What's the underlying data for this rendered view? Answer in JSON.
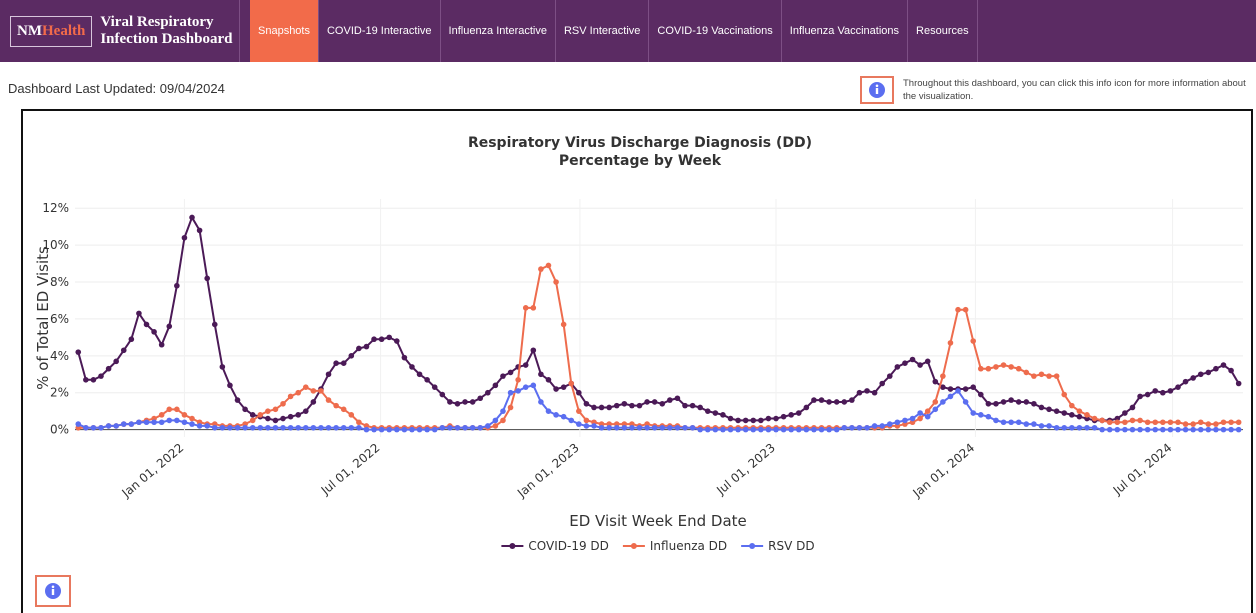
{
  "nav": {
    "brand_a": "NM",
    "brand_b": "Health",
    "title_lines": [
      "Viral Respiratory",
      "Infection Dashboard"
    ],
    "tabs": [
      "Snapshots",
      "COVID-19 Interactive",
      "Influenza Interactive",
      "RSV Interactive",
      "COVID-19 Vaccinations",
      "Influenza Vaccinations",
      "Resources"
    ]
  },
  "last_updated": "Dashboard Last Updated: 09/04/2024",
  "info_note": "Throughout this dashboard, you can click this info icon for more information about the visualization.",
  "chart_data": {
    "type": "line",
    "title": "Respiratory Virus Discharge Diagnosis (DD)",
    "subtitle": "Percentage by Week",
    "x_label": "ED Visit Week End Date",
    "y_label": "% of Total ED Visits",
    "xlim": [
      "2021-09-22",
      "2024-09-04"
    ],
    "xticks": [
      {
        "value": "2022-01-01",
        "label": "Jan 01, 2022"
      },
      {
        "value": "2022-07-01",
        "label": "Jul 01, 2022"
      },
      {
        "value": "2023-01-01",
        "label": "Jan 01, 2023"
      },
      {
        "value": "2023-07-01",
        "label": "Jul 01, 2023"
      },
      {
        "value": "2024-01-01",
        "label": "Jan 01, 2024"
      },
      {
        "value": "2024-07-01",
        "label": "Jul 01, 2024"
      }
    ],
    "ylim": [
      -0.4,
      12.5
    ],
    "yticks": [
      {
        "value": 0,
        "label": "0%"
      },
      {
        "value": 2,
        "label": "2%"
      },
      {
        "value": 4,
        "label": "4%"
      },
      {
        "value": 6,
        "label": "6%"
      },
      {
        "value": 8,
        "label": "8%"
      },
      {
        "value": 10,
        "label": "10%"
      },
      {
        "value": 12,
        "label": "12%"
      }
    ],
    "grid": true,
    "legend": "bottom",
    "x": [
      "2021-09-25",
      "2021-10-02",
      "2021-10-09",
      "2021-10-16",
      "2021-10-23",
      "2021-10-30",
      "2021-11-06",
      "2021-11-13",
      "2021-11-20",
      "2021-11-27",
      "2021-12-04",
      "2021-12-11",
      "2021-12-18",
      "2021-12-25",
      "2022-01-01",
      "2022-01-08",
      "2022-01-15",
      "2022-01-22",
      "2022-01-29",
      "2022-02-05",
      "2022-02-12",
      "2022-02-19",
      "2022-02-26",
      "2022-03-05",
      "2022-03-12",
      "2022-03-19",
      "2022-03-26",
      "2022-04-02",
      "2022-04-09",
      "2022-04-16",
      "2022-04-23",
      "2022-04-30",
      "2022-05-07",
      "2022-05-14",
      "2022-05-21",
      "2022-05-28",
      "2022-06-04",
      "2022-06-11",
      "2022-06-18",
      "2022-06-25",
      "2022-07-02",
      "2022-07-09",
      "2022-07-16",
      "2022-07-23",
      "2022-07-30",
      "2022-08-06",
      "2022-08-13",
      "2022-08-20",
      "2022-08-27",
      "2022-09-03",
      "2022-09-10",
      "2022-09-17",
      "2022-09-24",
      "2022-10-01",
      "2022-10-08",
      "2022-10-15",
      "2022-10-22",
      "2022-10-29",
      "2022-11-05",
      "2022-11-12",
      "2022-11-19",
      "2022-11-26",
      "2022-12-03",
      "2022-12-10",
      "2022-12-17",
      "2022-12-24",
      "2022-12-31",
      "2023-01-07",
      "2023-01-14",
      "2023-01-21",
      "2023-01-28",
      "2023-02-04",
      "2023-02-11",
      "2023-02-18",
      "2023-02-25",
      "2023-03-04",
      "2023-03-11",
      "2023-03-18",
      "2023-03-25",
      "2023-04-01",
      "2023-04-08",
      "2023-04-15",
      "2023-04-22",
      "2023-04-29",
      "2023-05-06",
      "2023-05-13",
      "2023-05-20",
      "2023-05-27",
      "2023-06-03",
      "2023-06-10",
      "2023-06-17",
      "2023-06-24",
      "2023-07-01",
      "2023-07-08",
      "2023-07-15",
      "2023-07-22",
      "2023-07-29",
      "2023-08-05",
      "2023-08-12",
      "2023-08-19",
      "2023-08-26",
      "2023-09-02",
      "2023-09-09",
      "2023-09-16",
      "2023-09-23",
      "2023-09-30",
      "2023-10-07",
      "2023-10-14",
      "2023-10-21",
      "2023-10-28",
      "2023-11-04",
      "2023-11-11",
      "2023-11-18",
      "2023-11-25",
      "2023-12-02",
      "2023-12-09",
      "2023-12-16",
      "2023-12-23",
      "2023-12-30",
      "2024-01-06",
      "2024-01-13",
      "2024-01-20",
      "2024-01-27",
      "2024-02-03",
      "2024-02-10",
      "2024-02-17",
      "2024-02-24",
      "2024-03-02",
      "2024-03-09",
      "2024-03-16",
      "2024-03-23",
      "2024-03-30",
      "2024-04-06",
      "2024-04-13",
      "2024-04-20",
      "2024-04-27",
      "2024-05-04",
      "2024-05-11",
      "2024-05-18",
      "2024-05-25",
      "2024-06-01",
      "2024-06-08",
      "2024-06-15",
      "2024-06-22",
      "2024-06-29",
      "2024-07-06",
      "2024-07-13",
      "2024-07-20",
      "2024-07-27",
      "2024-08-03",
      "2024-08-10",
      "2024-08-17",
      "2024-08-24",
      "2024-08-31"
    ],
    "series": [
      {
        "name": "COVID-19 DD",
        "color": "#4b1a57",
        "values": [
          4.2,
          2.7,
          2.7,
          2.9,
          3.3,
          3.7,
          4.3,
          4.9,
          6.3,
          5.7,
          5.3,
          4.6,
          5.6,
          7.8,
          10.4,
          11.5,
          10.8,
          8.2,
          5.7,
          3.4,
          2.4,
          1.6,
          1.1,
          0.8,
          0.7,
          0.6,
          0.5,
          0.6,
          0.7,
          0.8,
          1.0,
          1.5,
          2.2,
          3.0,
          3.6,
          3.6,
          4.0,
          4.4,
          4.5,
          4.9,
          4.9,
          5.0,
          4.8,
          3.9,
          3.4,
          3.0,
          2.7,
          2.3,
          1.9,
          1.5,
          1.4,
          1.5,
          1.5,
          1.7,
          2.0,
          2.4,
          2.9,
          3.1,
          3.4,
          3.5,
          4.3,
          3.0,
          2.7,
          2.2,
          2.3,
          2.5,
          2.0,
          1.4,
          1.2,
          1.2,
          1.2,
          1.3,
          1.4,
          1.3,
          1.3,
          1.5,
          1.5,
          1.4,
          1.6,
          1.7,
          1.3,
          1.3,
          1.2,
          1.0,
          0.9,
          0.8,
          0.6,
          0.5,
          0.5,
          0.5,
          0.5,
          0.6,
          0.6,
          0.7,
          0.8,
          0.9,
          1.2,
          1.6,
          1.6,
          1.5,
          1.5,
          1.5,
          1.6,
          2.0,
          2.1,
          2.0,
          2.5,
          2.9,
          3.4,
          3.6,
          3.8,
          3.5,
          3.7,
          2.6,
          2.3,
          2.2,
          2.2,
          2.2,
          2.3,
          1.9,
          1.4,
          1.4,
          1.5,
          1.6,
          1.5,
          1.5,
          1.4,
          1.2,
          1.1,
          1.0,
          0.9,
          0.8,
          0.7,
          0.6,
          0.5,
          0.5,
          0.5,
          0.6,
          0.9,
          1.2,
          1.8,
          1.9,
          2.1,
          2.0,
          2.1,
          2.3,
          2.6,
          2.8,
          3.0,
          3.1,
          3.3,
          3.5,
          3.2,
          2.5
        ]
      },
      {
        "name": "Influenza DD",
        "color": "#ee6c4d",
        "values": [
          0.1,
          0.1,
          0.1,
          0.1,
          0.2,
          0.2,
          0.3,
          0.3,
          0.4,
          0.5,
          0.6,
          0.8,
          1.1,
          1.1,
          0.8,
          0.6,
          0.4,
          0.3,
          0.3,
          0.2,
          0.2,
          0.2,
          0.3,
          0.5,
          0.8,
          1.0,
          1.1,
          1.4,
          1.8,
          2.0,
          2.3,
          2.1,
          2.1,
          1.6,
          1.3,
          1.1,
          0.8,
          0.4,
          0.2,
          0.1,
          0.1,
          0.1,
          0.1,
          0.1,
          0.1,
          0.1,
          0.1,
          0.1,
          0.1,
          0.2,
          0.1,
          0.1,
          0.1,
          0.1,
          0.1,
          0.2,
          0.5,
          1.2,
          2.7,
          6.6,
          6.6,
          8.7,
          8.9,
          8.0,
          5.7,
          2.5,
          1.0,
          0.5,
          0.4,
          0.3,
          0.3,
          0.3,
          0.3,
          0.3,
          0.2,
          0.3,
          0.2,
          0.2,
          0.2,
          0.2,
          0.1,
          0.1,
          0.1,
          0.1,
          0.1,
          0.1,
          0.1,
          0.1,
          0.1,
          0.1,
          0.1,
          0.1,
          0.1,
          0.1,
          0.1,
          0.1,
          0.1,
          0.1,
          0.1,
          0.1,
          0.1,
          0.1,
          0.1,
          0.1,
          0.1,
          0.1,
          0.1,
          0.2,
          0.2,
          0.3,
          0.4,
          0.6,
          1.0,
          1.5,
          2.9,
          4.7,
          6.5,
          6.5,
          4.8,
          3.3,
          3.3,
          3.4,
          3.5,
          3.4,
          3.3,
          3.1,
          2.9,
          3.0,
          2.9,
          2.9,
          1.9,
          1.3,
          1.0,
          0.8,
          0.6,
          0.5,
          0.4,
          0.4,
          0.4,
          0.5,
          0.5,
          0.4,
          0.4,
          0.4,
          0.4,
          0.4,
          0.3,
          0.3,
          0.4,
          0.3,
          0.3,
          0.4,
          0.4,
          0.4
        ]
      },
      {
        "name": "RSV DD",
        "color": "#5b6ef0",
        "values": [
          0.3,
          0.1,
          0.1,
          0.1,
          0.2,
          0.2,
          0.3,
          0.3,
          0.4,
          0.4,
          0.4,
          0.4,
          0.5,
          0.5,
          0.4,
          0.3,
          0.2,
          0.2,
          0.1,
          0.1,
          0.1,
          0.1,
          0.1,
          0.1,
          0.1,
          0.1,
          0.1,
          0.1,
          0.1,
          0.1,
          0.1,
          0.1,
          0.1,
          0.1,
          0.1,
          0.1,
          0.1,
          0.1,
          0,
          0,
          0,
          0,
          0,
          0,
          0,
          0,
          0,
          0,
          0.1,
          0.1,
          0.1,
          0.1,
          0.1,
          0.1,
          0.2,
          0.5,
          1.0,
          2.0,
          2.1,
          2.3,
          2.4,
          1.5,
          1.0,
          0.8,
          0.7,
          0.5,
          0.3,
          0.2,
          0.2,
          0.1,
          0.1,
          0.1,
          0.1,
          0.1,
          0.1,
          0.1,
          0.1,
          0.1,
          0.1,
          0.1,
          0.1,
          0.1,
          0,
          0,
          0,
          0,
          0,
          0,
          0,
          0,
          0,
          0,
          0,
          0,
          0,
          0,
          0,
          0,
          0,
          0,
          0,
          0.1,
          0.1,
          0.1,
          0.1,
          0.2,
          0.2,
          0.3,
          0.4,
          0.5,
          0.6,
          0.9,
          0.7,
          1.1,
          1.5,
          1.8,
          2.1,
          1.5,
          0.9,
          0.8,
          0.7,
          0.5,
          0.4,
          0.4,
          0.4,
          0.3,
          0.3,
          0.2,
          0.2,
          0.1,
          0.1,
          0.1,
          0.1,
          0.1,
          0.1,
          0,
          0,
          0,
          0,
          0,
          0,
          0,
          0,
          0,
          0,
          0,
          0,
          0,
          0,
          0,
          0,
          0,
          0,
          0
        ]
      }
    ]
  }
}
